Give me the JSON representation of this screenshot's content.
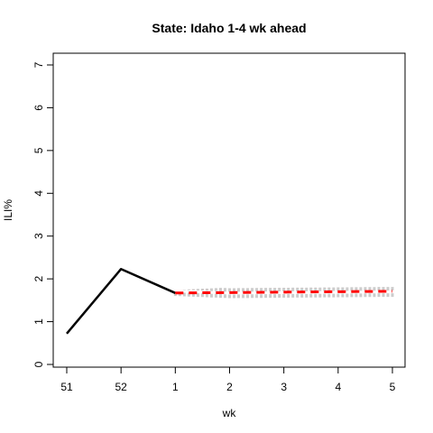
{
  "chart_data": {
    "type": "line",
    "title": "State: Idaho 1-4 wk ahead",
    "xlabel": "wk",
    "ylabel": "ILI%",
    "x_tick_labels": [
      "51",
      "52",
      "1",
      "2",
      "3",
      "4",
      "5"
    ],
    "y_ticks": [
      0,
      1,
      2,
      3,
      4,
      5,
      6,
      7
    ],
    "ylim": [
      0,
      7
    ],
    "grid": false,
    "legend": "none",
    "series": [
      {
        "role": "observed",
        "color": "#000000",
        "x": [
          "51",
          "52",
          "1"
        ],
        "values": [
          0.72,
          2.23,
          1.67
        ]
      },
      {
        "role": "forecast-point",
        "color": "#ff0000",
        "x": [
          "1",
          "2",
          "3",
          "4",
          "5"
        ],
        "values": [
          1.67,
          1.68,
          1.69,
          1.7,
          1.71
        ]
      }
    ],
    "interval_band": {
      "color": "#cccccc",
      "x": [
        "1",
        "2",
        "3",
        "4",
        "5"
      ],
      "lower": [
        1.6,
        1.55,
        1.56,
        1.57,
        1.58
      ],
      "upper": [
        1.74,
        1.8,
        1.81,
        1.82,
        1.83
      ]
    }
  }
}
